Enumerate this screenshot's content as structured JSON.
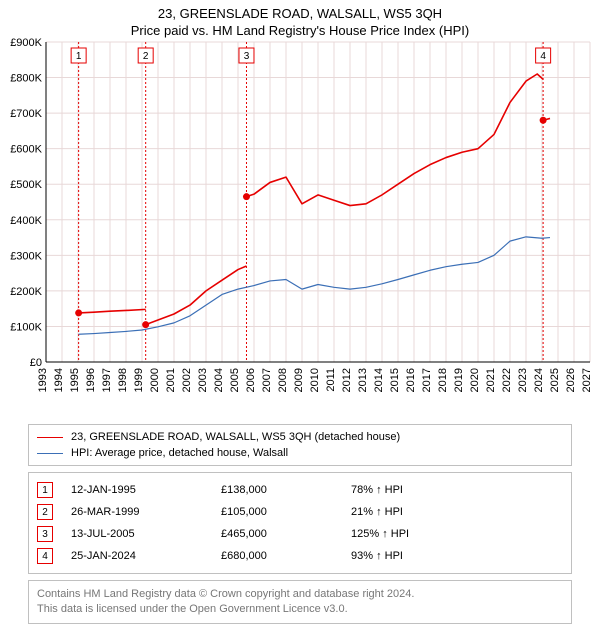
{
  "title": "23, GREENSLADE ROAD, WALSALL, WS5 3QH",
  "subtitle": "Price paid vs. HM Land Registry's House Price Index (HPI)",
  "chart": {
    "type": "line",
    "background_color": "#ffffff",
    "grid_color": "#e8d8d8",
    "axis_color": "#000000",
    "label_fontsize": 11,
    "label_color": "#000000",
    "xlim": [
      1993,
      2027
    ],
    "ylim": [
      0,
      900000
    ],
    "ytick_step": 100000,
    "yticks_labels": [
      "£0",
      "£100K",
      "£200K",
      "£300K",
      "£400K",
      "£500K",
      "£600K",
      "£700K",
      "£800K",
      "£900K"
    ],
    "xticks": [
      1993,
      1994,
      1995,
      1996,
      1997,
      1998,
      1999,
      2000,
      2001,
      2002,
      2003,
      2004,
      2005,
      2006,
      2007,
      2008,
      2009,
      2010,
      2011,
      2012,
      2013,
      2014,
      2015,
      2016,
      2017,
      2018,
      2019,
      2020,
      2021,
      2022,
      2023,
      2024,
      2025,
      2026,
      2027
    ],
    "series": [
      {
        "name": "23, GREENSLADE ROAD, WALSALL, WS5 3QH (detached house)",
        "color": "#e60000",
        "line_width": 1.6,
        "segments": [
          {
            "points": [
              [
                1995.04,
                138000
              ],
              [
                1996,
                140000
              ],
              [
                1997,
                143000
              ],
              [
                1998,
                145000
              ],
              [
                1999.23,
                148000
              ]
            ]
          },
          {
            "points": [
              [
                1999.23,
                105000
              ],
              [
                2000,
                118000
              ],
              [
                2001,
                135000
              ],
              [
                2002,
                160000
              ],
              [
                2003,
                200000
              ],
              [
                2004,
                230000
              ],
              [
                2005,
                260000
              ],
              [
                2005.53,
                270000
              ]
            ]
          },
          {
            "points": [
              [
                2005.53,
                465000
              ],
              [
                2006,
                472000
              ],
              [
                2007,
                505000
              ],
              [
                2008,
                520000
              ],
              [
                2009,
                445000
              ],
              [
                2010,
                470000
              ],
              [
                2011,
                455000
              ],
              [
                2012,
                440000
              ],
              [
                2013,
                445000
              ],
              [
                2014,
                470000
              ],
              [
                2015,
                500000
              ],
              [
                2016,
                530000
              ],
              [
                2017,
                555000
              ],
              [
                2018,
                575000
              ],
              [
                2019,
                590000
              ],
              [
                2020,
                600000
              ],
              [
                2021,
                640000
              ],
              [
                2022,
                730000
              ],
              [
                2023,
                790000
              ],
              [
                2023.7,
                810000
              ],
              [
                2024.07,
                795000
              ]
            ]
          },
          {
            "points": [
              [
                2024.07,
                680000
              ],
              [
                2024.5,
                685000
              ]
            ]
          }
        ],
        "sale_points": [
          {
            "x": 1995.04,
            "y": 138000
          },
          {
            "x": 1999.23,
            "y": 105000
          },
          {
            "x": 2005.53,
            "y": 465000
          },
          {
            "x": 2024.07,
            "y": 680000
          }
        ]
      },
      {
        "name": "HPI: Average price, detached house, Walsall",
        "color": "#3b6fb6",
        "line_width": 1.2,
        "segments": [
          {
            "points": [
              [
                1995.04,
                78000
              ],
              [
                1996,
                80000
              ],
              [
                1997,
                83000
              ],
              [
                1998,
                86000
              ],
              [
                1999,
                90000
              ],
              [
                2000,
                99000
              ],
              [
                2001,
                110000
              ],
              [
                2002,
                130000
              ],
              [
                2003,
                160000
              ],
              [
                2004,
                190000
              ],
              [
                2005,
                205000
              ],
              [
                2006,
                215000
              ],
              [
                2007,
                228000
              ],
              [
                2008,
                232000
              ],
              [
                2009,
                205000
              ],
              [
                2010,
                218000
              ],
              [
                2011,
                210000
              ],
              [
                2012,
                205000
              ],
              [
                2013,
                210000
              ],
              [
                2014,
                220000
              ],
              [
                2015,
                232000
              ],
              [
                2016,
                245000
              ],
              [
                2017,
                258000
              ],
              [
                2018,
                268000
              ],
              [
                2019,
                275000
              ],
              [
                2020,
                280000
              ],
              [
                2021,
                300000
              ],
              [
                2022,
                340000
              ],
              [
                2023,
                352000
              ],
              [
                2024,
                348000
              ],
              [
                2024.5,
                350000
              ]
            ]
          }
        ]
      }
    ],
    "vlines": [
      {
        "x": 1995.04,
        "idx": 1
      },
      {
        "x": 1999.23,
        "idx": 2
      },
      {
        "x": 2005.53,
        "idx": 3
      },
      {
        "x": 2024.07,
        "idx": 4
      }
    ],
    "marker_border_color": "#e60000",
    "marker_fill": "#ffffff",
    "marker_size": 15,
    "marker_dash": "2,2"
  },
  "legend": {
    "items": [
      {
        "color": "#e60000",
        "width": 1.6,
        "label": "23, GREENSLADE ROAD, WALSALL, WS5 3QH (detached house)"
      },
      {
        "color": "#3b6fb6",
        "width": 1.2,
        "label": "HPI: Average price, detached house, Walsall"
      }
    ]
  },
  "table": {
    "marker_border_color": "#e60000",
    "rows": [
      {
        "idx": "1",
        "date": "12-JAN-1995",
        "price": "£138,000",
        "pct": "78% ↑ HPI"
      },
      {
        "idx": "2",
        "date": "26-MAR-1999",
        "price": "£105,000",
        "pct": "21% ↑ HPI"
      },
      {
        "idx": "3",
        "date": "13-JUL-2005",
        "price": "£465,000",
        "pct": "125% ↑ HPI"
      },
      {
        "idx": "4",
        "date": "25-JAN-2024",
        "price": "£680,000",
        "pct": "93% ↑ HPI"
      }
    ]
  },
  "footer": {
    "line1": "Contains HM Land Registry data © Crown copyright and database right 2024.",
    "line2": "This data is licensed under the Open Government Licence v3.0."
  }
}
